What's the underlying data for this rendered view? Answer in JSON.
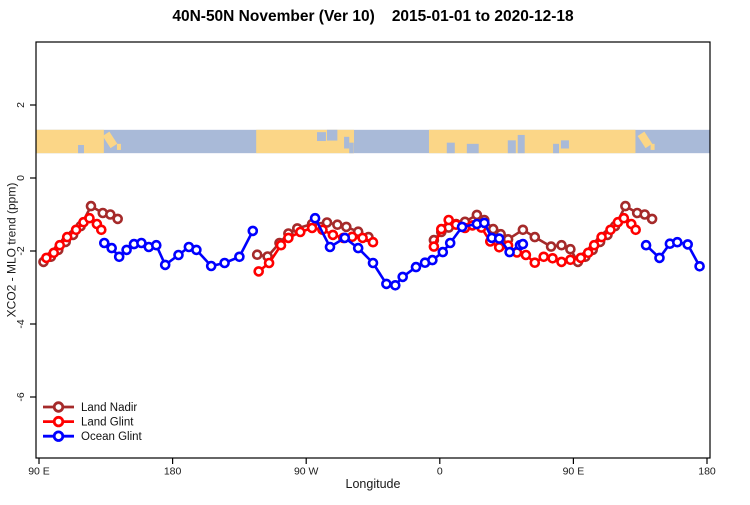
{
  "title": {
    "main": "40N-50N November (Ver 10)",
    "dates": "2015-01-01 to 2020-12-18"
  },
  "chart_data": {
    "type": "line",
    "title": "40N-50N November (Ver 10)  2015-01-01 to 2020-12-18",
    "xlabel": "Longitude",
    "ylabel": "XCO2 - MLO trend (ppm)",
    "grid": false,
    "legend_position": "bottom-left",
    "x_axis": {
      "note": "degrees east of 90E, axis wraps 450 degrees: 90E-180-90W-0-90E-180",
      "range": [
        0,
        450
      ],
      "ticks": [
        {
          "pos": 0,
          "label": "90 E"
        },
        {
          "pos": 90,
          "label": "180"
        },
        {
          "pos": 180,
          "label": "90 W"
        },
        {
          "pos": 270,
          "label": "0"
        },
        {
          "pos": 360,
          "label": "90 E"
        },
        {
          "pos": 450,
          "label": "180"
        }
      ]
    },
    "y_axis": {
      "range": [
        -6.6,
        3.7
      ],
      "ticks": [
        {
          "pos": 2,
          "label": "2"
        },
        {
          "pos": 0,
          "label": "0"
        },
        {
          "pos": -2,
          "label": "-2"
        },
        {
          "pos": -4,
          "label": "-4"
        },
        {
          "pos": -6,
          "label": "-6"
        }
      ]
    },
    "series": [
      {
        "name": "Land Nadir",
        "color": "#A52A2A",
        "segments": [
          [
            [
              3,
              -2.3
            ],
            [
              8,
              -2.16
            ],
            [
              13,
              -1.97
            ],
            [
              18,
              -1.75
            ],
            [
              23,
              -1.56
            ],
            [
              28,
              -1.32
            ],
            [
              35,
              -0.77
            ],
            [
              43,
              -0.96
            ],
            [
              48,
              -1.0
            ],
            [
              53,
              -1.12
            ]
          ],
          [
            [
              147,
              -2.1
            ],
            [
              154,
              -2.15
            ],
            [
              162,
              -1.78
            ],
            [
              168,
              -1.52
            ],
            [
              174,
              -1.38
            ],
            [
              184,
              -1.26
            ],
            [
              194,
              -1.22
            ],
            [
              201,
              -1.28
            ],
            [
              207,
              -1.34
            ],
            [
              215,
              -1.47
            ],
            [
              222,
              -1.62
            ]
          ],
          [
            [
              266,
              -1.7
            ],
            [
              271,
              -1.48
            ],
            [
              276,
              -1.36
            ],
            [
              281,
              -1.26
            ],
            [
              287,
              -1.2
            ],
            [
              295,
              -1.01
            ],
            [
              300,
              -1.15
            ],
            [
              306,
              -1.4
            ],
            [
              311,
              -1.54
            ],
            [
              316,
              -1.68
            ],
            [
              326,
              -1.42
            ],
            [
              334,
              -1.62
            ],
            [
              345,
              -1.88
            ],
            [
              352,
              -1.84
            ],
            [
              358,
              -1.95
            ],
            [
              363,
              -2.3
            ],
            [
              368,
              -2.16
            ],
            [
              373,
              -1.97
            ],
            [
              378,
              -1.75
            ],
            [
              383,
              -1.56
            ],
            [
              388,
              -1.32
            ],
            [
              395,
              -0.77
            ],
            [
              403,
              -0.96
            ],
            [
              408,
              -1.0
            ],
            [
              413,
              -1.12
            ]
          ]
        ]
      },
      {
        "name": "Land Glint",
        "color": "#FF0000",
        "segments": [
          [
            [
              5,
              -2.19
            ],
            [
              10,
              -2.05
            ],
            [
              14,
              -1.84
            ],
            [
              19,
              -1.62
            ],
            [
              25,
              -1.42
            ],
            [
              30,
              -1.21
            ],
            [
              34,
              -1.1
            ],
            [
              39,
              -1.26
            ],
            [
              42,
              -1.42
            ]
          ],
          [
            [
              148,
              -2.56
            ],
            [
              155,
              -2.33
            ],
            [
              163,
              -1.84
            ],
            [
              168,
              -1.64
            ],
            [
              176,
              -1.48
            ],
            [
              184,
              -1.37
            ],
            [
              191,
              -1.42
            ],
            [
              198,
              -1.56
            ],
            [
              205,
              -1.64
            ],
            [
              211,
              -1.61
            ],
            [
              218,
              -1.64
            ],
            [
              225,
              -1.76
            ]
          ],
          [
            [
              266,
              -1.88
            ],
            [
              271,
              -1.4
            ],
            [
              276,
              -1.15
            ],
            [
              281,
              -1.28
            ],
            [
              287,
              -1.37
            ],
            [
              292,
              -1.3
            ],
            [
              298,
              -1.36
            ],
            [
              304,
              -1.74
            ],
            [
              310,
              -1.9
            ],
            [
              316,
              -1.85
            ],
            [
              322,
              -2.04
            ],
            [
              328,
              -2.11
            ],
            [
              334,
              -2.32
            ],
            [
              340,
              -2.16
            ],
            [
              346,
              -2.2
            ],
            [
              352,
              -2.3
            ],
            [
              358,
              -2.24
            ],
            [
              365,
              -2.19
            ],
            [
              370,
              -2.05
            ],
            [
              374,
              -1.84
            ],
            [
              379,
              -1.62
            ],
            [
              385,
              -1.42
            ],
            [
              390,
              -1.21
            ],
            [
              394,
              -1.1
            ],
            [
              399,
              -1.26
            ],
            [
              402,
              -1.42
            ]
          ]
        ]
      },
      {
        "name": "Ocean Glint",
        "color": "#0000FF",
        "segments": [
          [
            [
              44,
              -1.78
            ],
            [
              49,
              -1.92
            ],
            [
              54,
              -2.16
            ],
            [
              59,
              -1.97
            ],
            [
              64,
              -1.81
            ],
            [
              69,
              -1.78
            ],
            [
              74,
              -1.89
            ],
            [
              79,
              -1.84
            ],
            [
              85,
              -2.38
            ],
            [
              94,
              -2.11
            ],
            [
              101,
              -1.89
            ],
            [
              106,
              -1.97
            ],
            [
              116,
              -2.41
            ],
            [
              125,
              -2.33
            ],
            [
              135,
              -2.16
            ],
            [
              144,
              -1.45
            ]
          ],
          [
            [
              186,
              -1.1
            ],
            [
              196,
              -1.89
            ],
            [
              206,
              -1.64
            ],
            [
              215,
              -1.92
            ],
            [
              225,
              -2.33
            ],
            [
              234,
              -2.9
            ],
            [
              240,
              -2.94
            ],
            [
              245,
              -2.71
            ],
            [
              254,
              -2.44
            ],
            [
              260,
              -2.32
            ],
            [
              265,
              -2.25
            ],
            [
              272,
              -2.03
            ],
            [
              277,
              -1.78
            ],
            [
              285,
              -1.34
            ],
            [
              295,
              -1.26
            ],
            [
              300,
              -1.23
            ],
            [
              305,
              -1.64
            ],
            [
              310,
              -1.66
            ],
            [
              317,
              -2.03
            ],
            [
              324,
              -1.84
            ],
            [
              326,
              -1.81
            ]
          ],
          [
            [
              409,
              -1.84
            ],
            [
              418,
              -2.19
            ],
            [
              425,
              -1.8
            ],
            [
              430,
              -1.76
            ],
            [
              437,
              -1.82
            ],
            [
              445,
              -2.42
            ]
          ]
        ]
      }
    ],
    "map_strip": {
      "description": "land/ocean band for latitude 40N-50N drawn across the longitude axis",
      "y_top_value": 1.32,
      "y_bottom_value": 0.68,
      "land_color": "#FBD687",
      "ocean_color": "#A9BAD8",
      "land_segments_deg": [
        [
          -2,
          43.7
        ],
        [
          146.3,
          212.2
        ],
        [
          262.7,
          401.8
        ]
      ],
      "islands": [
        {
          "t": 45.1,
          "dt": 5.4,
          "top": 0.12,
          "h": 0.62,
          "slant": true
        },
        {
          "t": 52.5,
          "dt": 2.7,
          "top": 0.6,
          "h": 0.26,
          "slant": false
        },
        {
          "t": 405.5,
          "dt": 5.4,
          "top": 0.12,
          "h": 0.62,
          "slant": true
        },
        {
          "t": 412.0,
          "dt": 2.7,
          "top": 0.6,
          "h": 0.26,
          "slant": false
        }
      ],
      "lakes": [
        {
          "t": 187.3,
          "dt": 6.0,
          "top": 0.1,
          "h": 0.38
        },
        {
          "t": 194.0,
          "dt": 7.0,
          "top": 0.0,
          "h": 0.46
        },
        {
          "t": 205.5,
          "dt": 3.5,
          "top": 0.3,
          "h": 0.5
        },
        {
          "t": 209.0,
          "dt": 3.0,
          "top": 0.55,
          "h": 0.45
        },
        {
          "t": 274.7,
          "dt": 5.4,
          "top": 0.55,
          "h": 0.45
        },
        {
          "t": 288.2,
          "dt": 8.0,
          "top": 0.6,
          "h": 0.4
        },
        {
          "t": 315.8,
          "dt": 5.4,
          "top": 0.45,
          "h": 0.55
        },
        {
          "t": 322.5,
          "dt": 4.7,
          "top": 0.22,
          "h": 0.78
        },
        {
          "t": 346.3,
          "dt": 4.0,
          "top": 0.6,
          "h": 0.4
        },
        {
          "t": 351.6,
          "dt": 5.4,
          "top": 0.45,
          "h": 0.35
        },
        {
          "t": 26.3,
          "dt": 4.0,
          "top": 0.65,
          "h": 0.35
        }
      ]
    }
  }
}
